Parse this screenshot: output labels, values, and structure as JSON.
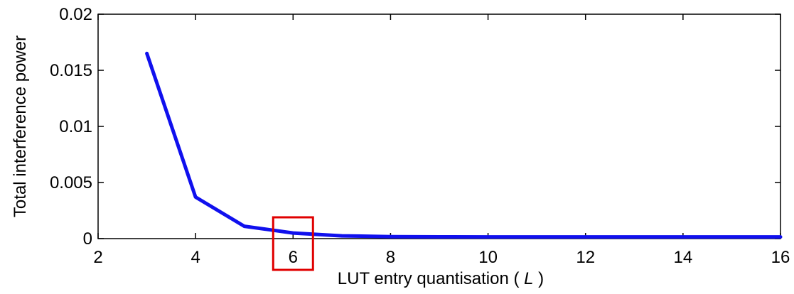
{
  "chart_data": {
    "type": "line",
    "title": "",
    "xlabel": "LUT entry quantisation ( L )",
    "xlabel_parts": {
      "prefix": "LUT entry quantisation ( ",
      "var": "L",
      "suffix": " )"
    },
    "ylabel": "Total interference power",
    "xlim": [
      2,
      16
    ],
    "ylim": [
      0,
      0.02
    ],
    "xticks": [
      2,
      4,
      6,
      8,
      10,
      12,
      14,
      16
    ],
    "yticks": [
      0,
      0.005,
      0.01,
      0.015,
      0.02
    ],
    "ytick_labels": [
      "0",
      "0.005",
      "0.01",
      "0.015",
      "0.02"
    ],
    "grid": false,
    "series": [
      {
        "color": "#1010ee",
        "x": [
          3,
          4,
          5,
          6,
          7,
          8,
          9,
          10,
          11,
          12,
          13,
          14,
          15,
          16
        ],
        "y": [
          0.0165,
          0.0037,
          0.0011,
          0.0005,
          0.00025,
          0.00018,
          0.00016,
          0.00015,
          0.00015,
          0.00015,
          0.00015,
          0.00015,
          0.00015,
          0.00015
        ]
      }
    ],
    "highlight": {
      "x_center": 6,
      "color": "#e00000"
    }
  }
}
